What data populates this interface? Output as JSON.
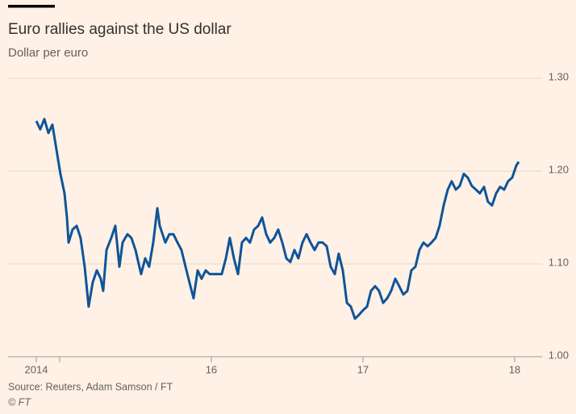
{
  "chart_data": {
    "type": "line",
    "title": "Euro rallies against the US dollar",
    "subtitle": "Dollar per euro",
    "source": "Source: Reuters, Adam Samson / FT",
    "credit": "© FT",
    "xlim": [
      2014.846,
      2018.027
    ],
    "xticks": [
      {
        "value": 2014.846,
        "label": "2014"
      },
      {
        "value": 2015,
        "label": null
      },
      {
        "value": 2016,
        "label": "16"
      },
      {
        "value": 2017,
        "label": "17"
      },
      {
        "value": 2018,
        "label": "18"
      }
    ],
    "ylim": [
      1.0,
      1.3
    ],
    "yticks": [
      {
        "value": 1.3,
        "label": "1.30"
      },
      {
        "value": 1.2,
        "label": "1.20"
      },
      {
        "value": 1.1,
        "label": "1.10"
      },
      {
        "value": 1.0,
        "label": "1.00"
      }
    ],
    "grid": true,
    "x": [
      2014.846,
      2014.872,
      2014.899,
      2014.926,
      2014.952,
      2014.979,
      2015.005,
      2015.032,
      2015.048,
      2015.059,
      2015.085,
      2015.112,
      2015.138,
      2015.165,
      2015.191,
      2015.218,
      2015.245,
      2015.271,
      2015.287,
      2015.309,
      2015.34,
      2015.367,
      2015.394,
      2015.415,
      2015.447,
      2015.473,
      2015.5,
      2015.537,
      2015.564,
      2015.59,
      2015.617,
      2015.644,
      2015.66,
      2015.697,
      2015.723,
      2015.75,
      2015.777,
      2015.803,
      2015.83,
      2015.856,
      2015.883,
      2015.91,
      2015.936,
      2015.963,
      2015.989,
      2016.043,
      2016.069,
      2016.096,
      2016.122,
      2016.149,
      2016.176,
      2016.202,
      2016.229,
      2016.255,
      2016.282,
      2016.309,
      2016.335,
      2016.362,
      2016.388,
      2016.415,
      2016.441,
      2016.468,
      2016.495,
      2016.521,
      2016.548,
      2016.574,
      2016.601,
      2016.628,
      2016.654,
      2016.681,
      2016.707,
      2016.734,
      2016.761,
      2016.787,
      2016.814,
      2016.84,
      2016.867,
      2016.894,
      2016.92,
      2016.947,
      2016.973,
      2017.0,
      2017.027,
      2017.053,
      2017.08,
      2017.106,
      2017.133,
      2017.16,
      2017.186,
      2017.213,
      2017.239,
      2017.266,
      2017.293,
      2017.319,
      2017.346,
      2017.372,
      2017.399,
      2017.426,
      2017.452,
      2017.479,
      2017.505,
      2017.532,
      2017.559,
      2017.585,
      2017.612,
      2017.638,
      2017.665,
      2017.691,
      2017.718,
      2017.745,
      2017.771,
      2017.798,
      2017.824,
      2017.851,
      2017.878,
      2017.904,
      2017.931,
      2017.957,
      2017.984,
      2018.011,
      2018.027
    ],
    "series": [
      {
        "color": "#0f5499",
        "values": [
          1.254,
          1.245,
          1.256,
          1.241,
          1.25,
          1.223,
          1.197,
          1.176,
          1.15,
          1.123,
          1.137,
          1.141,
          1.128,
          1.097,
          1.054,
          1.08,
          1.093,
          1.084,
          1.071,
          1.115,
          1.128,
          1.141,
          1.097,
          1.123,
          1.132,
          1.128,
          1.115,
          1.089,
          1.106,
          1.097,
          1.123,
          1.16,
          1.141,
          1.123,
          1.132,
          1.132,
          1.123,
          1.115,
          1.097,
          1.08,
          1.063,
          1.093,
          1.084,
          1.093,
          1.089,
          1.089,
          1.089,
          1.106,
          1.128,
          1.106,
          1.089,
          1.123,
          1.128,
          1.123,
          1.137,
          1.141,
          1.15,
          1.132,
          1.123,
          1.128,
          1.137,
          1.123,
          1.106,
          1.102,
          1.115,
          1.106,
          1.123,
          1.132,
          1.123,
          1.115,
          1.123,
          1.123,
          1.119,
          1.097,
          1.089,
          1.111,
          1.093,
          1.058,
          1.054,
          1.041,
          1.045,
          1.05,
          1.054,
          1.071,
          1.076,
          1.071,
          1.058,
          1.063,
          1.071,
          1.084,
          1.076,
          1.067,
          1.071,
          1.093,
          1.097,
          1.115,
          1.123,
          1.119,
          1.123,
          1.128,
          1.141,
          1.163,
          1.18,
          1.189,
          1.18,
          1.184,
          1.197,
          1.193,
          1.184,
          1.18,
          1.176,
          1.183,
          1.167,
          1.163,
          1.176,
          1.183,
          1.18,
          1.189,
          1.193,
          1.206,
          1.21
        ]
      }
    ]
  }
}
